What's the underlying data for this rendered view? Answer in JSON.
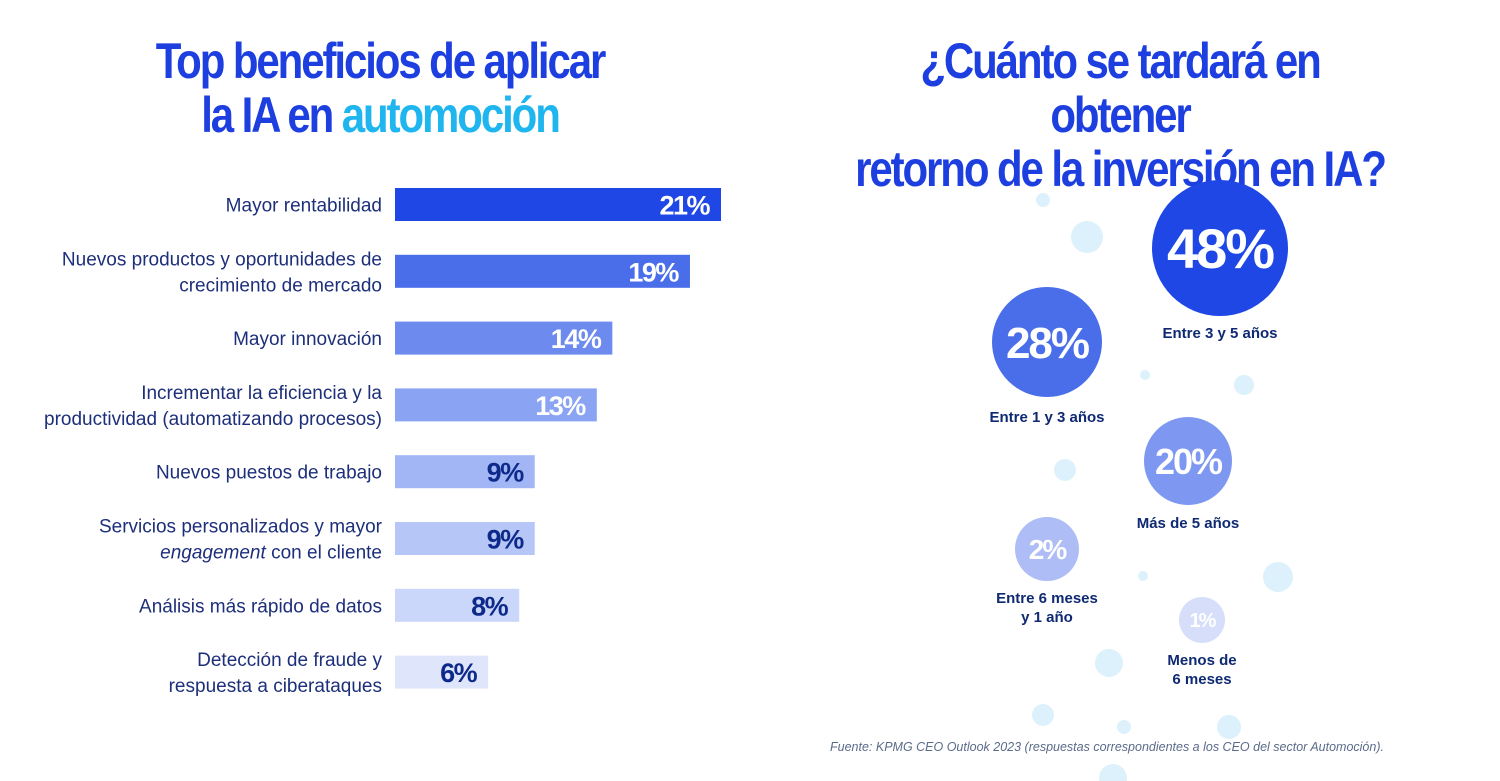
{
  "left_title": {
    "line1": "Top beneficios de aplicar",
    "line2_plain": "la IA en ",
    "line2_accent": "automoción"
  },
  "right_title": {
    "line1": "¿Cuánto se tardará en obtener",
    "line2": "retorno de la inversión en IA?"
  },
  "colors": {
    "title": "#1d3fe0",
    "accent": "#1fb6f0",
    "text": "#1d2f7a",
    "dot": "#dcf1fb"
  },
  "chart_data": [
    {
      "type": "bar",
      "orientation": "horizontal",
      "title": "Top beneficios de aplicar la IA en automoción",
      "unit": "%",
      "categories": [
        [
          "Mayor rentabilidad"
        ],
        [
          "Nuevos productos y oportunidades de",
          "crecimiento de mercado"
        ],
        [
          "Mayor innovación"
        ],
        [
          "Incrementar la eficiencia y la",
          "productividad (automatizando procesos)"
        ],
        [
          "Nuevos puestos de trabajo"
        ],
        [
          "Servicios personalizados y mayor",
          "engagement con el cliente"
        ],
        [
          "Análisis más rápido de datos"
        ],
        [
          "Detección de fraude y",
          "respuesta a ciberataques"
        ]
      ],
      "values": [
        21,
        19,
        14,
        13,
        9,
        9,
        8,
        6
      ],
      "value_labels": [
        "21%",
        "19%",
        "14%",
        "13%",
        "9%",
        "9%",
        "8%",
        "6%"
      ],
      "bar_colors": [
        "#1e47e6",
        "#4a6ee9",
        "#6d8bee",
        "#8aa3f2",
        "#a2b6f5",
        "#b5c6f7",
        "#cad6fa",
        "#dfe6fb"
      ],
      "label_colors": [
        "#ffffff",
        "#ffffff",
        "#ffffff",
        "#ffffff",
        "#0d2a8a",
        "#0d2a8a",
        "#0d2a8a",
        "#0d2a8a"
      ],
      "italic_words": [
        "engagement"
      ],
      "xlim": [
        0,
        21
      ],
      "grid": false
    },
    {
      "type": "bubble",
      "title": "¿Cuánto se tardará en obtener retorno de la inversión en IA?",
      "unit": "%",
      "items": [
        {
          "value": 48,
          "label": "48%",
          "caption": [
            "Entre 3 y 5 años"
          ],
          "color": "#1e47e6"
        },
        {
          "value": 28,
          "label": "28%",
          "caption": [
            "Entre 1 y 3 años"
          ],
          "color": "#4a6ee9"
        },
        {
          "value": 20,
          "label": "20%",
          "caption": [
            "Más de 5 años"
          ],
          "color": "#7e97f0"
        },
        {
          "value": 2,
          "label": "2%",
          "caption": [
            "Entre 6 meses",
            "y 1 año"
          ],
          "color": "#aebdf5"
        },
        {
          "value": 1,
          "label": "1%",
          "caption": [
            "Menos de",
            "6 meses"
          ],
          "color": "#d6def9"
        }
      ]
    }
  ],
  "source": "Fuente: KPMG CEO Outlook 2023 (respuestas correspondientes a los CEO del sector Automoción)."
}
